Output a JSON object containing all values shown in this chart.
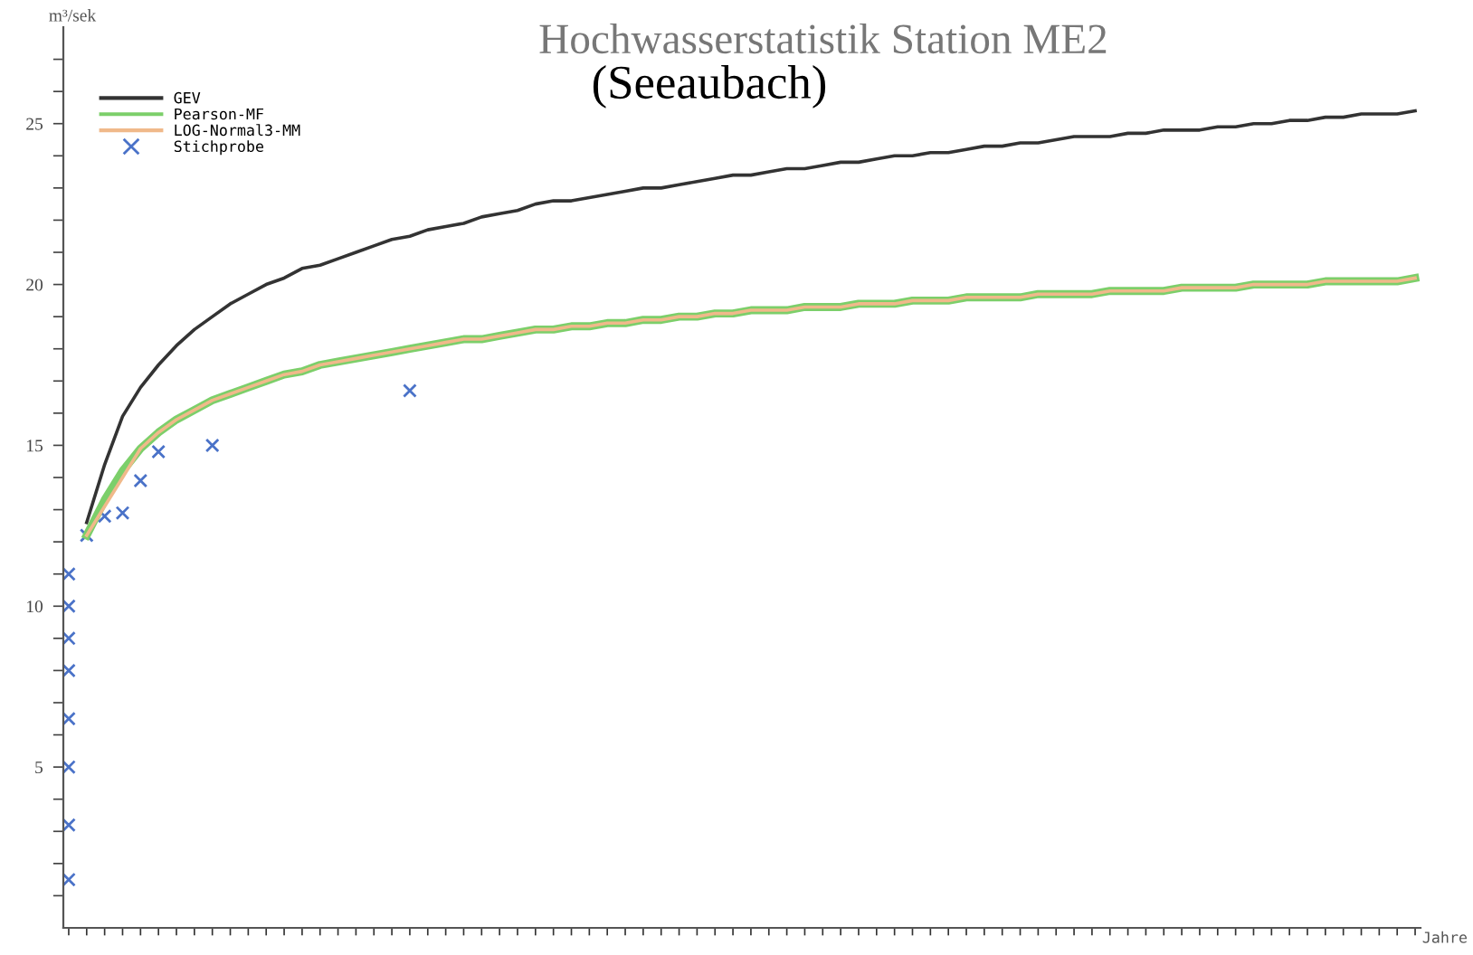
{
  "chart_data": {
    "type": "line",
    "title": "Hochwasserstatistik Station ME2",
    "subtitle": "(Seeaubach)",
    "ylabel": "m³/sek",
    "xlabel": "Jahre",
    "categories": [
      null,
      null,
      null,
      null,
      null,
      null,
      null,
      null,
      null,
      null,
      null,
      null,
      null,
      null,
      null,
      null,
      null,
      null,
      null,
      null,
      null,
      null,
      null,
      null,
      null,
      null,
      null,
      null,
      null,
      null,
      null,
      null,
      null,
      null,
      null,
      null,
      null,
      null,
      null,
      null,
      null,
      null,
      null,
      null,
      null,
      null,
      null,
      null,
      null,
      null,
      null,
      null,
      null,
      null,
      null,
      null,
      null,
      null,
      null,
      null,
      null,
      null,
      null,
      null,
      null,
      null,
      null,
      null,
      null,
      null,
      null,
      null,
      null,
      null,
      null,
      null
    ],
    "ylim": [
      0,
      28
    ],
    "yticks": [
      {
        "value": 1,
        "label": null
      },
      {
        "value": 2,
        "label": null
      },
      {
        "value": 3,
        "label": null
      },
      {
        "value": 4,
        "label": null
      },
      5,
      {
        "value": 6,
        "label": null
      },
      {
        "value": 7,
        "label": null
      },
      {
        "value": 8,
        "label": null
      },
      {
        "value": 9,
        "label": null
      },
      10,
      {
        "value": 11,
        "label": null
      },
      {
        "value": 12,
        "label": null
      },
      {
        "value": 13,
        "label": null
      },
      {
        "value": 14,
        "label": null
      },
      15,
      {
        "value": 16,
        "label": null
      },
      {
        "value": 17,
        "label": null
      },
      {
        "value": 18,
        "label": null
      },
      {
        "value": 19,
        "label": null
      },
      20,
      {
        "value": 21,
        "label": null
      },
      {
        "value": 22,
        "label": null
      },
      {
        "value": 23,
        "label": null
      },
      {
        "value": 24,
        "label": null
      },
      25,
      {
        "value": 26,
        "label": null
      },
      {
        "value": 27,
        "label": null
      }
    ],
    "legend": "top left",
    "series": [
      {
        "name": "GEV",
        "color": "#333333",
        "values": [
          null,
          12.6,
          14.4,
          15.9,
          16.8,
          17.5,
          18.1,
          18.6,
          19.0,
          19.4,
          19.7,
          20.0,
          20.2,
          20.5,
          20.6,
          20.8,
          21.0,
          21.2,
          21.4,
          21.5,
          21.7,
          21.8,
          21.9,
          22.1,
          22.2,
          22.3,
          22.5,
          22.6,
          22.6,
          22.7,
          22.8,
          22.9,
          23.0,
          23.0,
          23.1,
          23.2,
          23.3,
          23.4,
          23.4,
          23.5,
          23.6,
          23.6,
          23.7,
          23.8,
          23.8,
          23.9,
          24.0,
          24.0,
          24.1,
          24.1,
          24.2,
          24.3,
          24.3,
          24.4,
          24.4,
          24.5,
          24.6,
          24.6,
          24.6,
          24.7,
          24.7,
          24.8,
          24.8,
          24.8,
          24.9,
          24.9,
          25.0,
          25.0,
          25.1,
          25.1,
          25.2,
          25.2,
          25.3,
          25.3,
          25.3,
          25.4
        ]
      },
      {
        "name": "Pearson-MF",
        "color": "#7ccf6a",
        "values": [
          null,
          12.2,
          13.3,
          14.2,
          14.9,
          15.4,
          15.8,
          16.1,
          16.4,
          16.6,
          16.8,
          17.0,
          17.2,
          17.3,
          17.5,
          17.6,
          17.7,
          17.8,
          17.9,
          18.0,
          18.1,
          18.2,
          18.3,
          18.3,
          18.4,
          18.5,
          18.6,
          18.6,
          18.7,
          18.7,
          18.8,
          18.8,
          18.9,
          18.9,
          19.0,
          19.0,
          19.1,
          19.1,
          19.2,
          19.2,
          19.2,
          19.3,
          19.3,
          19.3,
          19.4,
          19.4,
          19.4,
          19.5,
          19.5,
          19.5,
          19.6,
          19.6,
          19.6,
          19.6,
          19.7,
          19.7,
          19.7,
          19.7,
          19.8,
          19.8,
          19.8,
          19.8,
          19.9,
          19.9,
          19.9,
          19.9,
          20.0,
          20.0,
          20.0,
          20.0,
          20.1,
          20.1,
          20.1,
          20.1,
          20.1,
          20.2
        ]
      },
      {
        "name": "LOG-Normal3-MM",
        "color": "#f0b98a",
        "values": [
          null,
          12.2,
          13.1,
          14.0,
          14.9,
          15.4,
          15.8,
          16.1,
          16.4,
          16.6,
          16.8,
          17.0,
          17.2,
          17.3,
          17.5,
          17.6,
          17.7,
          17.8,
          17.9,
          18.0,
          18.1,
          18.2,
          18.3,
          18.3,
          18.4,
          18.5,
          18.6,
          18.6,
          18.7,
          18.7,
          18.8,
          18.8,
          18.9,
          18.9,
          19.0,
          19.0,
          19.1,
          19.1,
          19.2,
          19.2,
          19.2,
          19.3,
          19.3,
          19.3,
          19.4,
          19.4,
          19.4,
          19.5,
          19.5,
          19.5,
          19.6,
          19.6,
          19.6,
          19.6,
          19.7,
          19.7,
          19.7,
          19.7,
          19.8,
          19.8,
          19.8,
          19.8,
          19.9,
          19.9,
          19.9,
          19.9,
          20.0,
          20.0,
          20.0,
          20.0,
          20.1,
          20.1,
          20.1,
          20.1,
          20.1,
          20.2
        ]
      },
      {
        "name": "Stichprobe",
        "type": "scatter",
        "marker": "cross",
        "color": "#4a72c8",
        "values": [
          11.0,
          12.2,
          12.8,
          12.9,
          13.9,
          14.8,
          null,
          null,
          15.0,
          null,
          null,
          null,
          null,
          null,
          null,
          null,
          null,
          null,
          null,
          16.7,
          null,
          null,
          null,
          null,
          null,
          null,
          null,
          null,
          null,
          null,
          null,
          null,
          null,
          null,
          null,
          null,
          null,
          null,
          null,
          null,
          null,
          null,
          null,
          null,
          null,
          null,
          null,
          null,
          null,
          null,
          null,
          null,
          null,
          null,
          null,
          null,
          null,
          null,
          null,
          null,
          null,
          null,
          null,
          null,
          null,
          null,
          null,
          null,
          null,
          null,
          null,
          null,
          null,
          null,
          null,
          null
        ]
      },
      {
        "type": "scatter",
        "marker": "cross",
        "color": "#4a72c8",
        "values": [
          10.0,
          null,
          null,
          null,
          null,
          null,
          null,
          null,
          null,
          null,
          null,
          null,
          null,
          null,
          null,
          null,
          null,
          null,
          null,
          null,
          null,
          null,
          null,
          null,
          null,
          null,
          null,
          null,
          null,
          null,
          null,
          null,
          null,
          null,
          null,
          null,
          null,
          null,
          null,
          null,
          null,
          null,
          null,
          null,
          null,
          null,
          null,
          null,
          null,
          null,
          null,
          null,
          null,
          null,
          null,
          null,
          null,
          null,
          null,
          null,
          null,
          null,
          null,
          null,
          null,
          null,
          null,
          null,
          null,
          null,
          null,
          null,
          null,
          null,
          null,
          null
        ]
      },
      {
        "type": "scatter",
        "marker": "cross",
        "color": "#4a72c8",
        "values": [
          9.0,
          null,
          null,
          null,
          null,
          null,
          null,
          null,
          null,
          null,
          null,
          null,
          null,
          null,
          null,
          null,
          null,
          null,
          null,
          null,
          null,
          null,
          null,
          null,
          null,
          null,
          null,
          null,
          null,
          null,
          null,
          null,
          null,
          null,
          null,
          null,
          null,
          null,
          null,
          null,
          null,
          null,
          null,
          null,
          null,
          null,
          null,
          null,
          null,
          null,
          null,
          null,
          null,
          null,
          null,
          null,
          null,
          null,
          null,
          null,
          null,
          null,
          null,
          null,
          null,
          null,
          null,
          null,
          null,
          null,
          null,
          null,
          null,
          null,
          null,
          null
        ]
      },
      {
        "type": "scatter",
        "marker": "cross",
        "color": "#4a72c8",
        "values": [
          8.0,
          null,
          null,
          null,
          null,
          null,
          null,
          null,
          null,
          null,
          null,
          null,
          null,
          null,
          null,
          null,
          null,
          null,
          null,
          null,
          null,
          null,
          null,
          null,
          null,
          null,
          null,
          null,
          null,
          null,
          null,
          null,
          null,
          null,
          null,
          null,
          null,
          null,
          null,
          null,
          null,
          null,
          null,
          null,
          null,
          null,
          null,
          null,
          null,
          null,
          null,
          null,
          null,
          null,
          null,
          null,
          null,
          null,
          null,
          null,
          null,
          null,
          null,
          null,
          null,
          null,
          null,
          null,
          null,
          null,
          null,
          null,
          null,
          null,
          null,
          null
        ]
      },
      {
        "type": "scatter",
        "marker": "cross",
        "color": "#4a72c8",
        "values": [
          6.5,
          null,
          null,
          null,
          null,
          null,
          null,
          null,
          null,
          null,
          null,
          null,
          null,
          null,
          null,
          null,
          null,
          null,
          null,
          null,
          null,
          null,
          null,
          null,
          null,
          null,
          null,
          null,
          null,
          null,
          null,
          null,
          null,
          null,
          null,
          null,
          null,
          null,
          null,
          null,
          null,
          null,
          null,
          null,
          null,
          null,
          null,
          null,
          null,
          null,
          null,
          null,
          null,
          null,
          null,
          null,
          null,
          null,
          null,
          null,
          null,
          null,
          null,
          null,
          null,
          null,
          null,
          null,
          null,
          null,
          null,
          null,
          null,
          null,
          null,
          null
        ]
      },
      {
        "type": "scatter",
        "marker": "cross",
        "color": "#4a72c8",
        "values": [
          5.0,
          null,
          null,
          null,
          null,
          null,
          null,
          null,
          null,
          null,
          null,
          null,
          null,
          null,
          null,
          null,
          null,
          null,
          null,
          null,
          null,
          null,
          null,
          null,
          null,
          null,
          null,
          null,
          null,
          null,
          null,
          null,
          null,
          null,
          null,
          null,
          null,
          null,
          null,
          null,
          null,
          null,
          null,
          null,
          null,
          null,
          null,
          null,
          null,
          null,
          null,
          null,
          null,
          null,
          null,
          null,
          null,
          null,
          null,
          null,
          null,
          null,
          null,
          null,
          null,
          null,
          null,
          null,
          null,
          null,
          null,
          null,
          null,
          null,
          null,
          null
        ]
      },
      {
        "type": "scatter",
        "marker": "cross",
        "color": "#4a72c8",
        "values": [
          3.2,
          null,
          null,
          null,
          null,
          null,
          null,
          null,
          null,
          null,
          null,
          null,
          null,
          null,
          null,
          null,
          null,
          null,
          null,
          null,
          null,
          null,
          null,
          null,
          null,
          null,
          null,
          null,
          null,
          null,
          null,
          null,
          null,
          null,
          null,
          null,
          null,
          null,
          null,
          null,
          null,
          null,
          null,
          null,
          null,
          null,
          null,
          null,
          null,
          null,
          null,
          null,
          null,
          null,
          null,
          null,
          null,
          null,
          null,
          null,
          null,
          null,
          null,
          null,
          null,
          null,
          null,
          null,
          null,
          null,
          null,
          null,
          null,
          null,
          null,
          null
        ]
      },
      {
        "type": "scatter",
        "marker": "cross",
        "color": "#4a72c8",
        "values": [
          1.5,
          null,
          null,
          null,
          null,
          null,
          null,
          null,
          null,
          null,
          null,
          null,
          null,
          null,
          null,
          null,
          null,
          null,
          null,
          null,
          null,
          null,
          null,
          null,
          null,
          null,
          null,
          null,
          null,
          null,
          null,
          null,
          null,
          null,
          null,
          null,
          null,
          null,
          null,
          null,
          null,
          null,
          null,
          null,
          null,
          null,
          null,
          null,
          null,
          null,
          null,
          null,
          null,
          null,
          null,
          null,
          null,
          null,
          null,
          null,
          null,
          null,
          null,
          null,
          null,
          null,
          null,
          null,
          null,
          null,
          null,
          null,
          null,
          null,
          null,
          null
        ]
      }
    ]
  }
}
